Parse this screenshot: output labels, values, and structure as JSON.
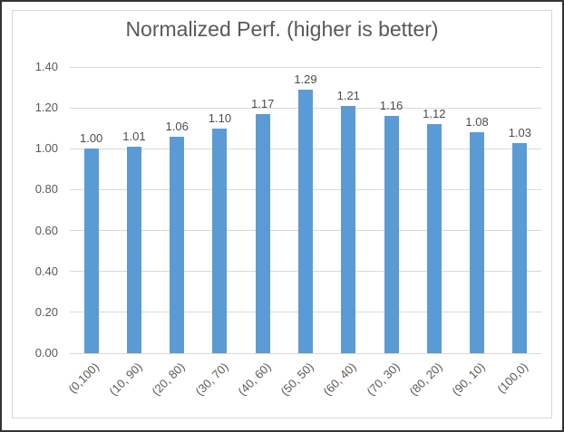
{
  "window": {
    "background": "#ffffff",
    "outer_border_color": "#343434",
    "frame_border_color": "#d9d9d9"
  },
  "chart_data": {
    "type": "bar",
    "title": "Normalized Perf. (higher is better)",
    "categories": [
      "(0,100)",
      "(10, 90)",
      "(20, 80)",
      "(30, 70)",
      "(40, 60)",
      "(50, 50)",
      "(60, 40)",
      "(70, 30)",
      "(80, 20)",
      "(90, 10)",
      "(100,0)"
    ],
    "values": [
      1.0,
      1.01,
      1.06,
      1.1,
      1.17,
      1.29,
      1.21,
      1.16,
      1.12,
      1.08,
      1.03
    ],
    "value_labels": [
      "1.00",
      "1.01",
      "1.06",
      "1.10",
      "1.17",
      "1.29",
      "1.21",
      "1.16",
      "1.12",
      "1.08",
      "1.03"
    ],
    "xlabel": "",
    "ylabel": "",
    "ylim": [
      0,
      1.4
    ],
    "yticks": [
      0.0,
      0.2,
      0.4,
      0.6,
      0.8,
      1.0,
      1.2,
      1.4
    ],
    "ytick_labels": [
      "0.00",
      "0.20",
      "0.40",
      "0.60",
      "0.80",
      "1.00",
      "1.20",
      "1.40"
    ],
    "grid": true,
    "legend": "none",
    "bar_color": "#5b9bd5",
    "title_color": "#595959",
    "tick_color": "#595959",
    "data_label_color": "#4d4d4d",
    "gridline_color": "#d9d9d9"
  }
}
